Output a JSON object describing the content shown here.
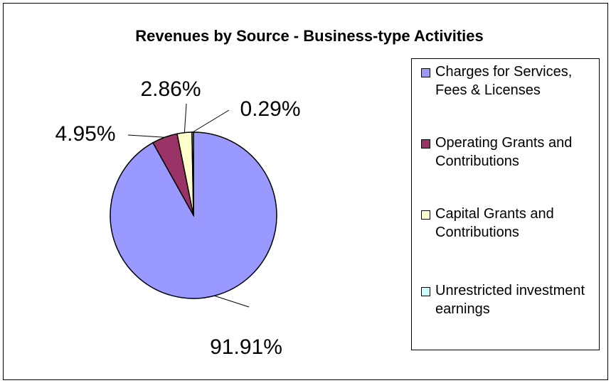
{
  "chart_data": {
    "type": "pie",
    "title": "Revenues by Source - Business-type Activities",
    "categories": [
      "Charges for Services, Fees & Licenses",
      "Operating Grants and Contributions",
      "Capital Grants and Contributions",
      "Unrestricted investment earnings"
    ],
    "values": [
      91.91,
      4.95,
      2.86,
      0.29
    ],
    "value_labels": [
      "91.91%",
      "4.95%",
      "2.86%",
      "0.29%"
    ],
    "colors": [
      "#9999ff",
      "#993366",
      "#ffffcc",
      "#ccffff"
    ],
    "legend": "right"
  }
}
